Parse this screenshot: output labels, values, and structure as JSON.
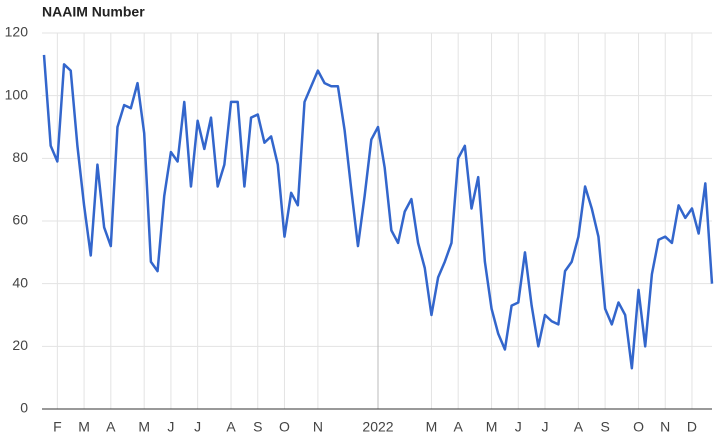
{
  "chart_data": {
    "type": "line",
    "title": "NAAIM Number",
    "categories": [
      null,
      null,
      "F",
      null,
      null,
      null,
      "M",
      null,
      null,
      null,
      "A",
      null,
      null,
      null,
      null,
      "M",
      null,
      null,
      null,
      "J",
      null,
      null,
      null,
      "J",
      null,
      null,
      null,
      null,
      "A",
      null,
      null,
      null,
      "S",
      null,
      null,
      null,
      "O",
      null,
      null,
      null,
      null,
      "N",
      null,
      null,
      null,
      null,
      null,
      null,
      null,
      null,
      "2022",
      null,
      null,
      null,
      null,
      null,
      null,
      null,
      "M",
      null,
      null,
      null,
      "A",
      null,
      null,
      null,
      null,
      "M",
      null,
      null,
      null,
      "J",
      null,
      null,
      null,
      "J",
      null,
      null,
      null,
      null,
      "A",
      null,
      null,
      null,
      "S",
      null,
      null,
      null,
      null,
      "O",
      null,
      null,
      null,
      "N",
      null,
      null,
      null,
      "D",
      null,
      null,
      null
    ],
    "series": [
      {
        "name": "NAAIM Number",
        "color": "#3366cc",
        "values": [
          113,
          84,
          79,
          110,
          108,
          84,
          65,
          49,
          78,
          58,
          52,
          90,
          97,
          96,
          104,
          88,
          47,
          44,
          68,
          82,
          79,
          98,
          71,
          92,
          83,
          93,
          71,
          78,
          98,
          98,
          71,
          93,
          94,
          85,
          87,
          78,
          55,
          69,
          65,
          98,
          103,
          108,
          104,
          103,
          103,
          89,
          70,
          52,
          68,
          86,
          90,
          77,
          57,
          53,
          63,
          67,
          53,
          45,
          30,
          42,
          47,
          53,
          80,
          84,
          64,
          74,
          47,
          32,
          24,
          19,
          33,
          34,
          50,
          33,
          20,
          30,
          28,
          27,
          44,
          47,
          55,
          71,
          64,
          55,
          32,
          27,
          34,
          30,
          13,
          38,
          20,
          43,
          54,
          55,
          53,
          65,
          61,
          64,
          56,
          72,
          40
        ]
      }
    ],
    "ylim": [
      0,
      120
    ],
    "yticks": [
      0,
      20,
      40,
      60,
      80,
      100,
      120
    ],
    "grid": true
  }
}
